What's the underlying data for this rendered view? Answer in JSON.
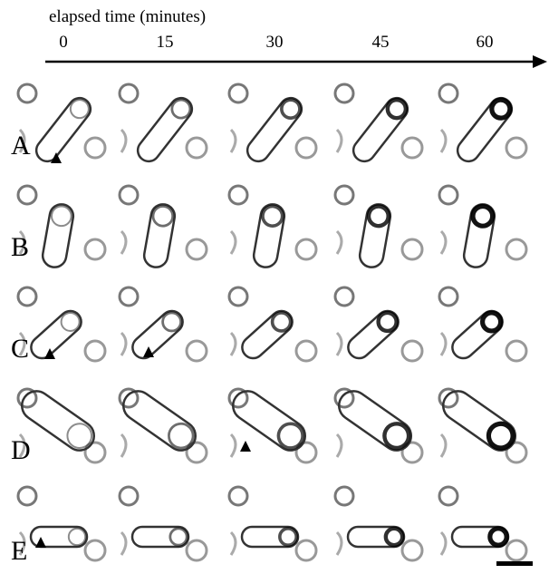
{
  "header": {
    "axis_label": "elapsed time (minutes)",
    "time_labels": [
      0,
      15,
      30,
      45,
      60
    ]
  },
  "rows": [
    {
      "label": "A"
    },
    {
      "label": "B"
    },
    {
      "label": "C"
    },
    {
      "label": "D"
    },
    {
      "label": "E"
    }
  ]
}
